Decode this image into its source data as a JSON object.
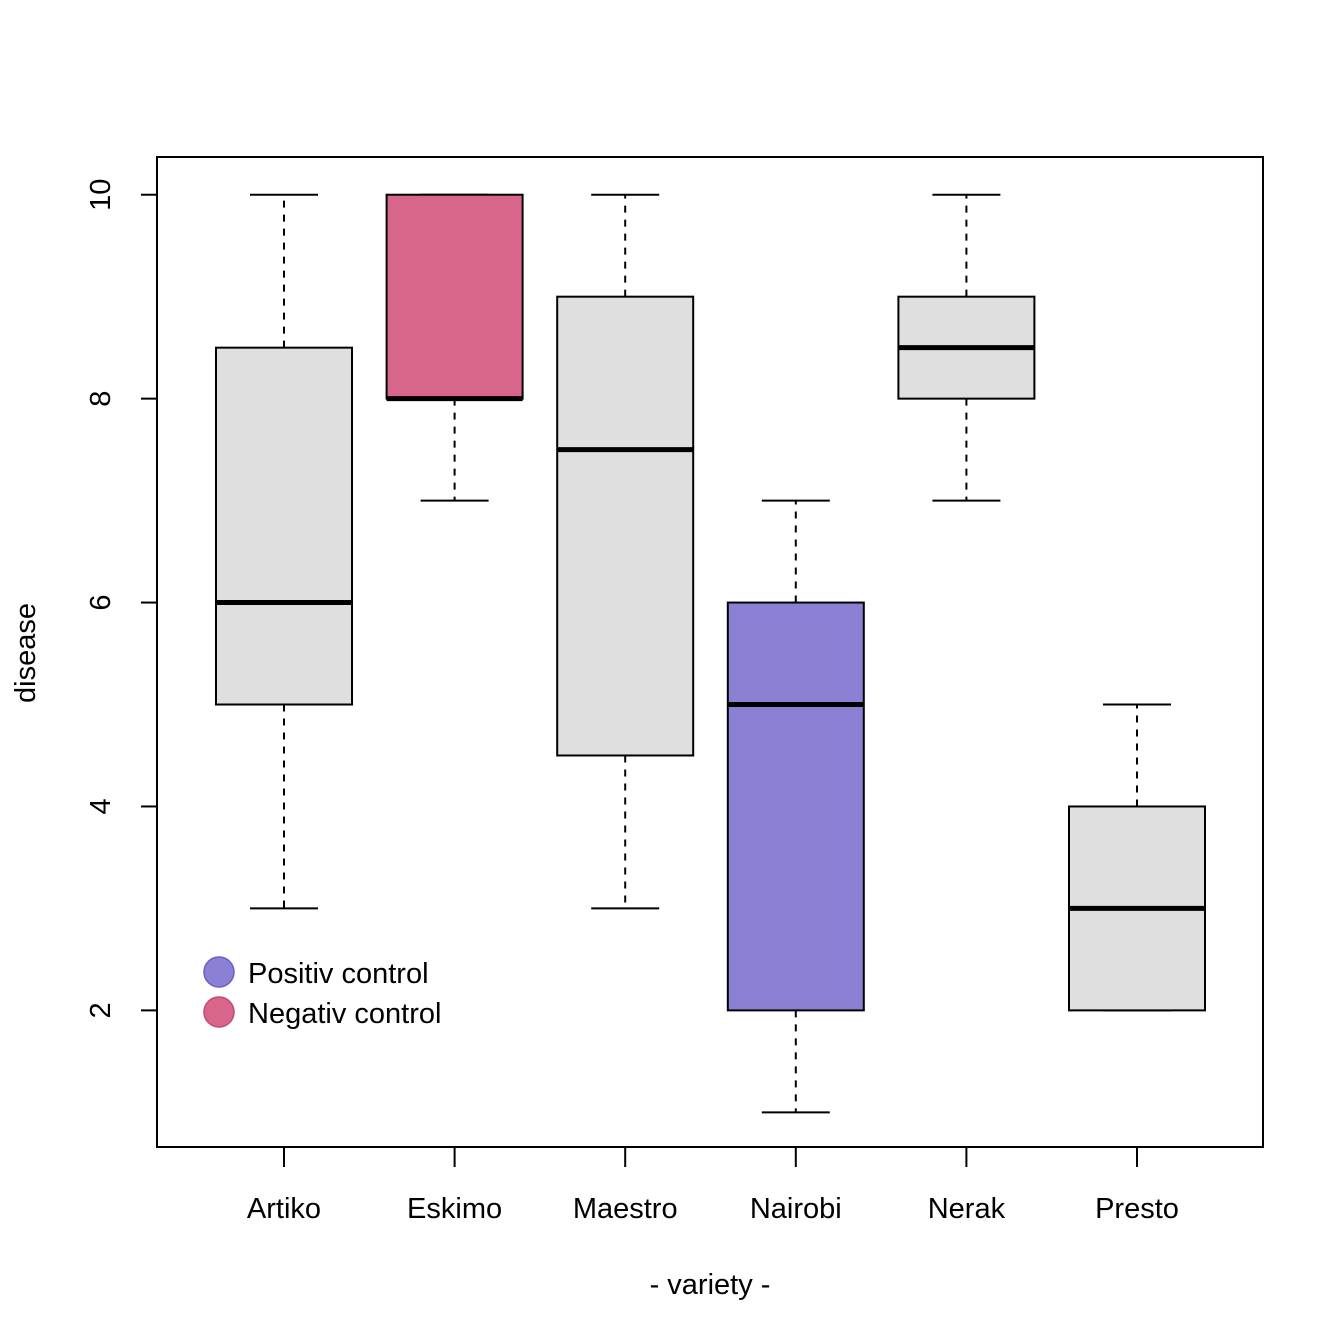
{
  "chart_data": {
    "type": "boxplot",
    "title": "",
    "xlabel": "- variety -",
    "ylabel": "disease",
    "ylim": [
      0.66,
      10.37
    ],
    "yticks": [
      "2",
      "4",
      "6",
      "8",
      "10"
    ],
    "grid": false,
    "colors": {
      "default_fill": "#DFDFDF",
      "positive": "#8A80D4",
      "negative": "#D7668A",
      "stroke": "#000000"
    },
    "categories": [
      "Artiko",
      "Eskimo",
      "Maestro",
      "Nairobi",
      "Nerak",
      "Presto"
    ],
    "boxes": [
      {
        "name": "Artiko",
        "whisker_low": 3,
        "q1": 5,
        "median": 6,
        "q3": 8.5,
        "whisker_high": 10,
        "group": "default"
      },
      {
        "name": "Eskimo",
        "whisker_low": 7,
        "q1": 8,
        "median": 8,
        "q3": 10,
        "whisker_high": 10,
        "group": "negative"
      },
      {
        "name": "Maestro",
        "whisker_low": 3,
        "q1": 4.5,
        "median": 7.5,
        "q3": 9,
        "whisker_high": 10,
        "group": "default"
      },
      {
        "name": "Nairobi",
        "whisker_low": 1,
        "q1": 2,
        "median": 5,
        "q3": 6,
        "whisker_high": 7,
        "group": "positive"
      },
      {
        "name": "Nerak",
        "whisker_low": 7,
        "q1": 8,
        "median": 8.5,
        "q3": 9,
        "whisker_high": 10,
        "group": "default"
      },
      {
        "name": "Presto",
        "whisker_low": 2,
        "q1": 2,
        "median": 3,
        "q3": 4,
        "whisker_high": 5,
        "group": "default"
      }
    ],
    "legend": {
      "position": "bottom-left",
      "items": [
        {
          "label": "Positiv control",
          "group": "positive"
        },
        {
          "label": "Negativ control",
          "group": "negative"
        }
      ]
    }
  }
}
